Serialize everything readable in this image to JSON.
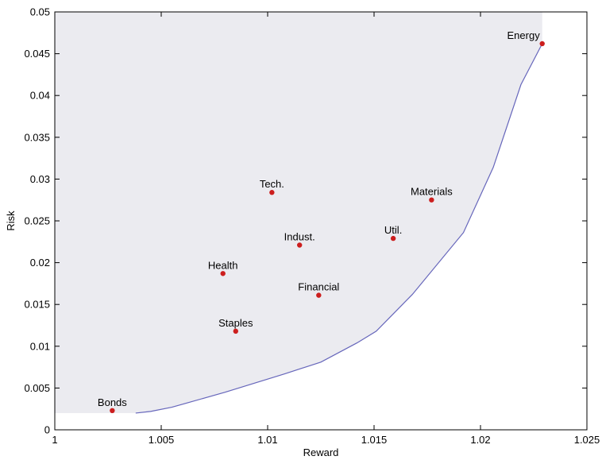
{
  "chart_data": {
    "type": "scatter",
    "title": "",
    "xlabel": "Reward",
    "ylabel": "Risk",
    "xlim": [
      1,
      1.025
    ],
    "ylim": [
      0,
      0.05
    ],
    "xticks": [
      1,
      1.005,
      1.01,
      1.015,
      1.02,
      1.025
    ],
    "xtick_labels": [
      "1",
      "1.005",
      "1.01",
      "1.015",
      "1.02",
      "1.025"
    ],
    "yticks": [
      0,
      0.005,
      0.01,
      0.015,
      0.02,
      0.025,
      0.03,
      0.035,
      0.04,
      0.045,
      0.05
    ],
    "ytick_labels": [
      "0",
      "0.005",
      "0.01",
      "0.015",
      "0.02",
      "0.025",
      "0.03",
      "0.035",
      "0.04",
      "0.045",
      "0.05"
    ],
    "grid": false,
    "points": [
      {
        "label": "Bonds",
        "x": 1.0027,
        "y": 0.0023
      },
      {
        "label": "Staples",
        "x": 1.0085,
        "y": 0.0118
      },
      {
        "label": "Health",
        "x": 1.0079,
        "y": 0.0187
      },
      {
        "label": "Financial",
        "x": 1.0124,
        "y": 0.0161
      },
      {
        "label": "Indust.",
        "x": 1.0115,
        "y": 0.0221
      },
      {
        "label": "Tech.",
        "x": 1.0102,
        "y": 0.0284
      },
      {
        "label": "Util.",
        "x": 1.0159,
        "y": 0.0229
      },
      {
        "label": "Materials",
        "x": 1.0177,
        "y": 0.0275
      },
      {
        "label": "Energy",
        "x": 1.0229,
        "y": 0.0462
      }
    ],
    "frontier": [
      [
        1.0,
        0.002
      ],
      [
        1.0038,
        0.002
      ],
      [
        1.0045,
        0.0022
      ],
      [
        1.0055,
        0.0027
      ],
      [
        1.008,
        0.0045
      ],
      [
        1.0108,
        0.0067
      ],
      [
        1.0125,
        0.0081
      ],
      [
        1.0142,
        0.0104
      ],
      [
        1.0151,
        0.0118
      ],
      [
        1.0168,
        0.0162
      ],
      [
        1.0192,
        0.0236
      ],
      [
        1.0206,
        0.0314
      ],
      [
        1.0219,
        0.0413
      ],
      [
        1.0229,
        0.0462
      ]
    ],
    "colors": {
      "point": "#cc1e1e",
      "frontier": "#6666bb",
      "fill": "#ebebf0"
    }
  }
}
